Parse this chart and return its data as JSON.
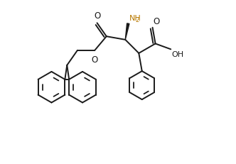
{
  "background_color": "#ffffff",
  "line_color": "#1a1a1a",
  "nh2_color": "#b87800",
  "line_width": 1.4,
  "figsize": [
    3.32,
    2.32
  ],
  "dpi": 100,
  "xlim": [
    -1,
    11
  ],
  "ylim": [
    -1,
    8
  ]
}
